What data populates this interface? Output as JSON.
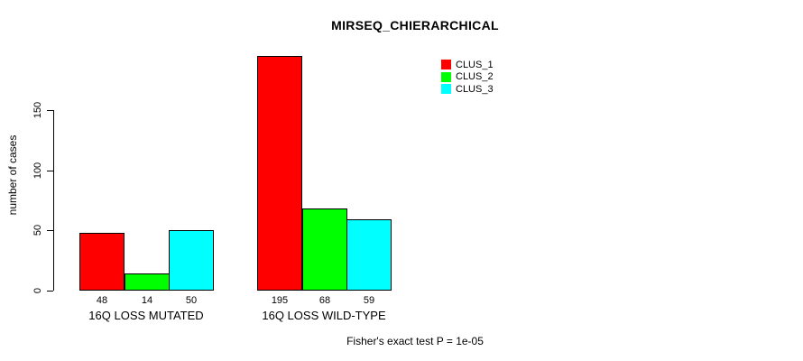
{
  "title": "MIRSEQ_CHIERARCHICAL",
  "ylabel": "number of cases",
  "annotation": "Fisher's exact test P = 1e-05",
  "colors": {
    "clus_1": "#ff0000",
    "clus_2": "#00ff00",
    "clus_3": "#00ffff",
    "axis": "#000000",
    "background": "#ffffff"
  },
  "chart_data": {
    "type": "bar",
    "title": "MIRSEQ_CHIERARCHICAL",
    "xlabel": "",
    "ylabel": "number of cases",
    "categories": [
      "16Q LOSS MUTATED",
      "16Q LOSS WILD-TYPE"
    ],
    "series": [
      {
        "name": "CLUS_1",
        "color": "#ff0000",
        "values": [
          48,
          195
        ]
      },
      {
        "name": "CLUS_2",
        "color": "#00ff00",
        "values": [
          14,
          68
        ]
      },
      {
        "name": "CLUS_3",
        "color": "#00ffff",
        "values": [
          50,
          59
        ]
      }
    ],
    "bar_value_labels": [
      [
        "48",
        "14",
        "50"
      ],
      [
        "195",
        "68",
        "59"
      ]
    ],
    "yticks": [
      0,
      50,
      100,
      150
    ],
    "ylim": [
      0,
      200
    ],
    "grid": false,
    "legend_position": "top-right",
    "legend_labels": [
      "CLUS_1",
      "CLUS_2",
      "CLUS_3"
    ],
    "annotation": "Fisher's exact test P = 1e-05"
  }
}
